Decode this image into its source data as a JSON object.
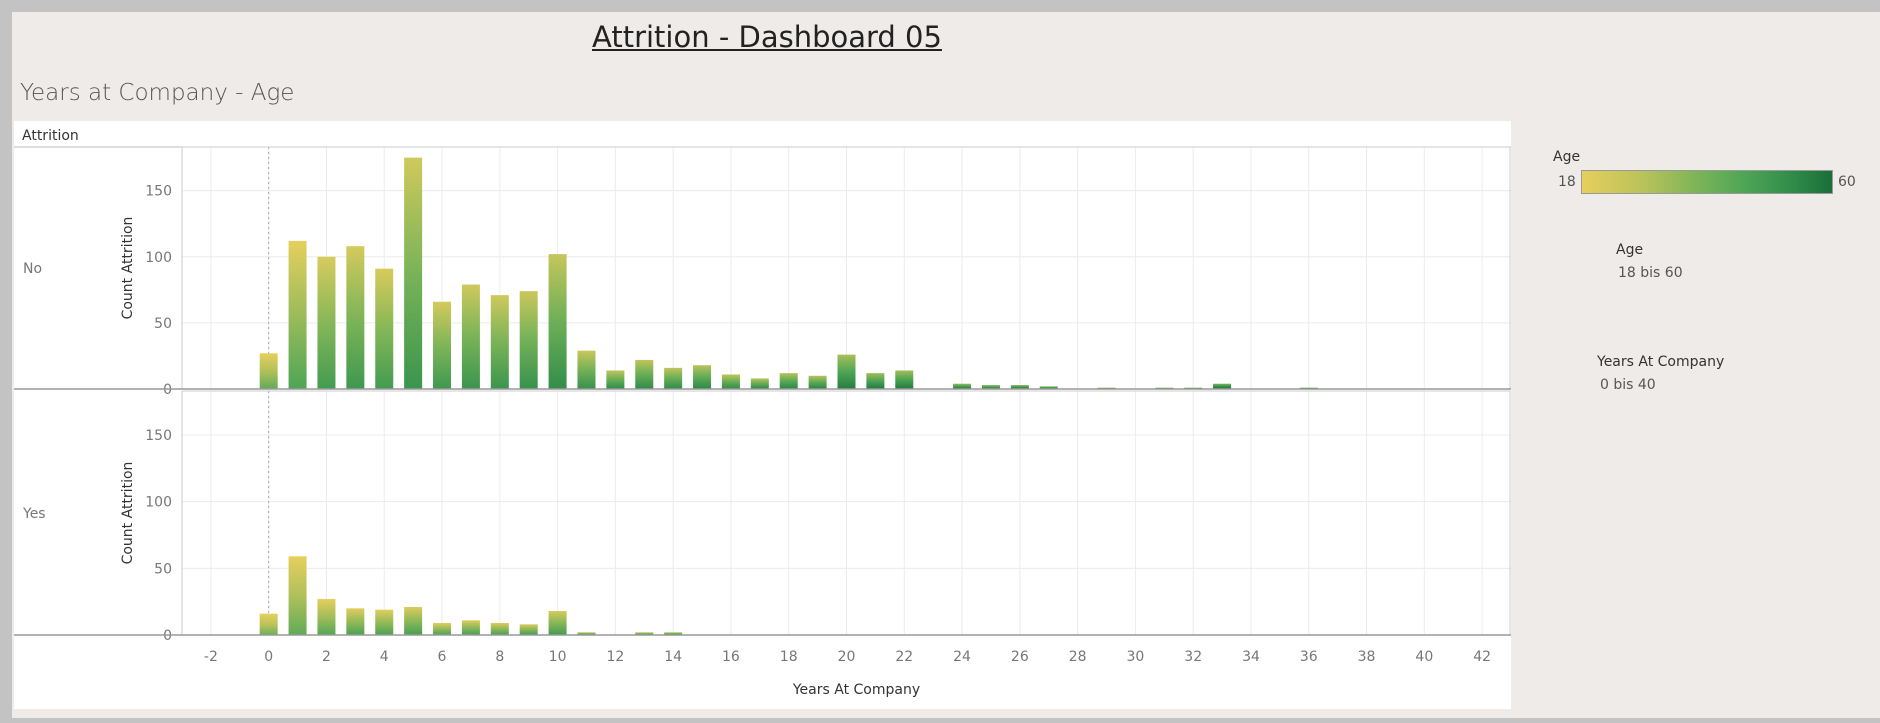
{
  "dashboard_title": "Attrition - Dashboard 05",
  "sheet_title": "Years at Company - Age",
  "header_label": "Attrition",
  "colors": {
    "age_low": "#e6cf5d",
    "age_high": "#1a6e3a",
    "background": "#efebe8"
  },
  "legend": {
    "color": {
      "title": "Age",
      "min_label": "18",
      "max_label": "60"
    },
    "filter_age": {
      "title": "Age",
      "range": "18 bis 60"
    },
    "filter_years": {
      "title": "Years At Company",
      "range": "0 bis 40"
    }
  },
  "chart_data": {
    "type": "bar",
    "xlabel": "Years At Company",
    "ylabel": "Count Attrition",
    "xlim": [
      -3,
      43
    ],
    "ylim": [
      0,
      180
    ],
    "x_ticks": [
      -2,
      0,
      2,
      4,
      6,
      8,
      10,
      12,
      14,
      16,
      18,
      20,
      22,
      24,
      26,
      28,
      30,
      32,
      34,
      36,
      38,
      40,
      42
    ],
    "y_ticks": [
      0,
      50,
      100,
      150
    ],
    "grid": true,
    "legend_placement": "right",
    "panels": [
      {
        "name": "No",
        "bars": [
          {
            "x": 0,
            "value": 27,
            "mean_age": 29
          },
          {
            "x": 1,
            "value": 112,
            "mean_age": 32
          },
          {
            "x": 2,
            "value": 100,
            "mean_age": 35
          },
          {
            "x": 3,
            "value": 108,
            "mean_age": 36
          },
          {
            "x": 4,
            "value": 91,
            "mean_age": 35
          },
          {
            "x": 5,
            "value": 175,
            "mean_age": 37
          },
          {
            "x": 6,
            "value": 66,
            "mean_age": 36
          },
          {
            "x": 7,
            "value": 79,
            "mean_age": 37
          },
          {
            "x": 8,
            "value": 71,
            "mean_age": 37
          },
          {
            "x": 9,
            "value": 74,
            "mean_age": 38
          },
          {
            "x": 10,
            "value": 102,
            "mean_age": 39
          },
          {
            "x": 11,
            "value": 29,
            "mean_age": 38
          },
          {
            "x": 12,
            "value": 14,
            "mean_age": 40
          },
          {
            "x": 13,
            "value": 22,
            "mean_age": 40
          },
          {
            "x": 14,
            "value": 16,
            "mean_age": 40
          },
          {
            "x": 15,
            "value": 18,
            "mean_age": 41
          },
          {
            "x": 16,
            "value": 11,
            "mean_age": 40
          },
          {
            "x": 17,
            "value": 8,
            "mean_age": 41
          },
          {
            "x": 18,
            "value": 12,
            "mean_age": 42
          },
          {
            "x": 19,
            "value": 10,
            "mean_age": 42
          },
          {
            "x": 20,
            "value": 26,
            "mean_age": 44
          },
          {
            "x": 21,
            "value": 12,
            "mean_age": 45
          },
          {
            "x": 22,
            "value": 14,
            "mean_age": 45
          },
          {
            "x": 24,
            "value": 4,
            "mean_age": 46
          },
          {
            "x": 25,
            "value": 3,
            "mean_age": 46
          },
          {
            "x": 26,
            "value": 3,
            "mean_age": 47
          },
          {
            "x": 27,
            "value": 2,
            "mean_age": 47
          },
          {
            "x": 29,
            "value": 1,
            "mean_age": 48
          },
          {
            "x": 31,
            "value": 1,
            "mean_age": 48
          },
          {
            "x": 32,
            "value": 1,
            "mean_age": 49
          },
          {
            "x": 33,
            "value": 4,
            "mean_age": 50
          },
          {
            "x": 36,
            "value": 1,
            "mean_age": 52
          }
        ]
      },
      {
        "name": "Yes",
        "bars": [
          {
            "x": 0,
            "value": 16,
            "mean_age": 27
          },
          {
            "x": 1,
            "value": 59,
            "mean_age": 29
          },
          {
            "x": 2,
            "value": 27,
            "mean_age": 31
          },
          {
            "x": 3,
            "value": 20,
            "mean_age": 33
          },
          {
            "x": 4,
            "value": 19,
            "mean_age": 33
          },
          {
            "x": 5,
            "value": 21,
            "mean_age": 34
          },
          {
            "x": 6,
            "value": 9,
            "mean_age": 33
          },
          {
            "x": 7,
            "value": 11,
            "mean_age": 34
          },
          {
            "x": 8,
            "value": 9,
            "mean_age": 34
          },
          {
            "x": 9,
            "value": 8,
            "mean_age": 35
          },
          {
            "x": 10,
            "value": 18,
            "mean_age": 35
          },
          {
            "x": 11,
            "value": 2,
            "mean_age": 38
          },
          {
            "x": 13,
            "value": 2,
            "mean_age": 38
          },
          {
            "x": 14,
            "value": 2,
            "mean_age": 40
          }
        ]
      }
    ]
  }
}
